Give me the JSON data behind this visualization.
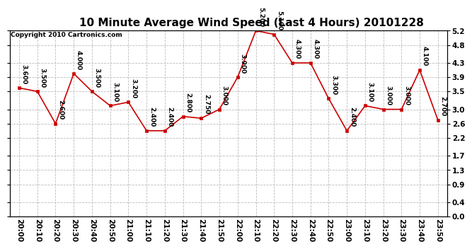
{
  "title": "10 Minute Average Wind Speed (Last 4 Hours) 20101228",
  "copyright": "Copyright 2010 Cartronics.com",
  "times": [
    "20:00",
    "20:10",
    "20:20",
    "20:30",
    "20:40",
    "20:50",
    "21:00",
    "21:10",
    "21:20",
    "21:30",
    "21:40",
    "21:50",
    "22:00",
    "22:10",
    "22:20",
    "22:30",
    "22:40",
    "22:50",
    "23:00",
    "23:10",
    "23:20",
    "23:30",
    "23:40",
    "23:50"
  ],
  "values": [
    3.6,
    3.5,
    2.6,
    4.0,
    3.5,
    3.1,
    3.2,
    2.4,
    2.4,
    2.8,
    2.75,
    3.0,
    3.9,
    5.2,
    5.1,
    4.3,
    4.3,
    3.3,
    2.4,
    3.1,
    3.0,
    3.0,
    4.1,
    2.7
  ],
  "labels": [
    "3.600",
    "3.500",
    "2.600",
    "4.000",
    "3.500",
    "3.100",
    "3.200",
    "2.400",
    "2.400",
    "2.800",
    "2.750",
    "3.000",
    "3.900",
    "5.200",
    "5.100",
    "4.300",
    "4.300",
    "3.300",
    "2.400",
    "3.100",
    "3.000",
    "3.000",
    "4.100",
    "2.700"
  ],
  "line_color": "#cc0000",
  "marker_color": "#cc0000",
  "bg_color": "#ffffff",
  "grid_color": "#bbbbbb",
  "ylim": [
    0.0,
    5.2
  ],
  "yticks": [
    0.0,
    0.4,
    0.9,
    1.3,
    1.7,
    2.2,
    2.6,
    3.0,
    3.5,
    3.9,
    4.3,
    4.8,
    5.2
  ],
  "title_fontsize": 11,
  "label_fontsize": 6.5,
  "tick_fontsize": 7.5,
  "copyright_fontsize": 6.5
}
